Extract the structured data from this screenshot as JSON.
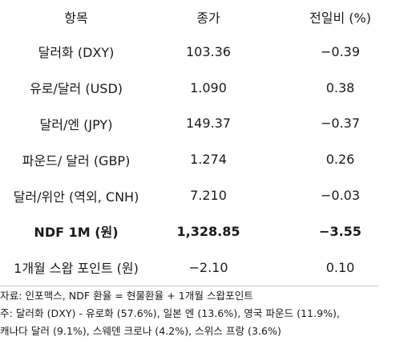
{
  "table": {
    "headers": [
      "항목",
      "종가",
      "전일비 (%)"
    ],
    "rows": [
      {
        "item": "달러화 (DXY)",
        "close": "103.36",
        "change": "−0.39",
        "bold": false
      },
      {
        "item": "유로/달러 (USD)",
        "close": "1.090",
        "change": "0.38",
        "bold": false
      },
      {
        "item": "달러/엔 (JPY)",
        "close": "149.37",
        "change": "−0.37",
        "bold": false
      },
      {
        "item": "파운드/ 달러 (GBP)",
        "close": "1.274",
        "change": "0.26",
        "bold": false
      },
      {
        "item": "달러/위안 (역외, CNH)",
        "close": "7.210",
        "change": "−0.03",
        "bold": false
      },
      {
        "item": "NDF 1M (원)",
        "close": "1,328.85",
        "change": "−3.55",
        "bold": true
      },
      {
        "item": "1개월 스왑 포인트 (원)",
        "close": "−2.10",
        "change": "0.10",
        "bold": false
      }
    ]
  },
  "notes": {
    "source": "자료: 인포맥스, NDF 환율 = 현물환율 + 1개월 스왑포인트",
    "note_line1": "주: 달러화 (DXY) - 유로화 (57.6%), 일본 엔 (13.6%), 영국 파운드 (11.9%),",
    "note_line2": "캐나다 달러 (9.1%), 스웨덴 크로나 (4.2%), 스위스 프랑 (3.6%)"
  }
}
